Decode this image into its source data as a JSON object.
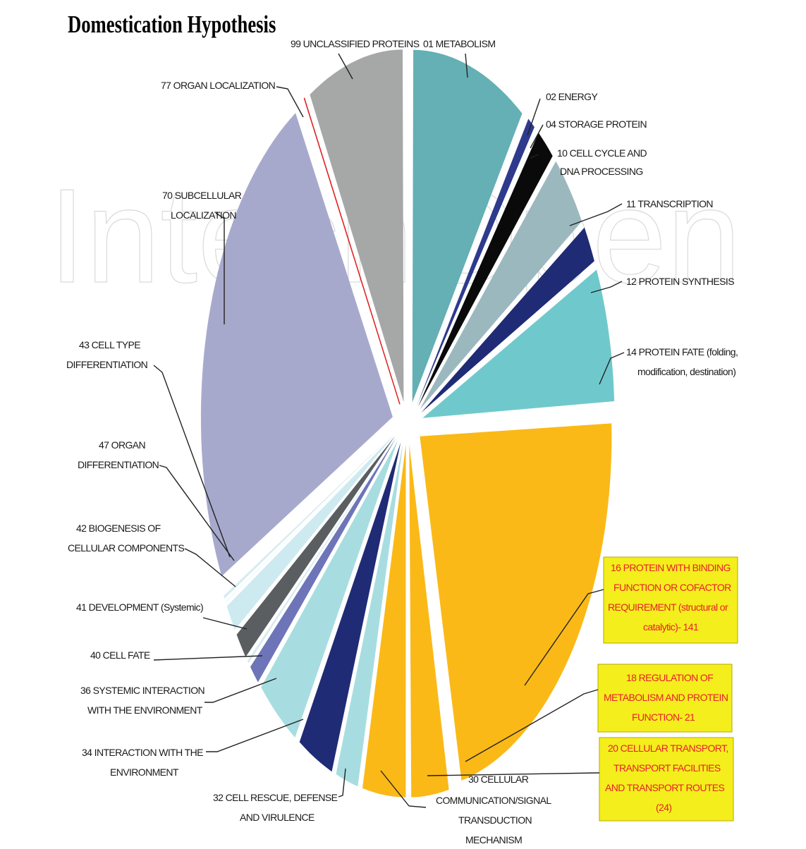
{
  "chart_data": {
    "type": "pie",
    "title": "Domestication Hypothesis",
    "watermark": "IntechOpen",
    "slices": [
      {
        "label": "01 METABOLISM",
        "value": 62,
        "color": "#64b0b4"
      },
      {
        "label": "02 ENERGY",
        "value": 5,
        "color": "#2e3a8c"
      },
      {
        "label": "04 STORAGE PROTEIN",
        "value": 1,
        "color": "#a9c3cf"
      },
      {
        "label": "10 CELL CYCLE AND DNA PROCESSING",
        "value": 11,
        "color": "#0a0a0a"
      },
      {
        "label": "11 TRANSCRIPTION",
        "value": 23,
        "color": "#9bb8bf"
      },
      {
        "label": "12 PROTEIN SYNTHESIS",
        "value": 12,
        "color": "#1f2b75"
      },
      {
        "label": "14 PROTEIN FATE (folding, modification, destination)",
        "value": 40,
        "color": "#6fc9cc"
      },
      {
        "label": "16 PROTEIN WITH BINDING FUNCTION OR COFACTOR REQUIREMENT (structural or catalytic)- 141",
        "value": 141,
        "color": "#fbb917",
        "highlight": true
      },
      {
        "label": "18 REGULATION OF METABOLISM AND PROTEIN FUNCTION- 21",
        "value": 21,
        "color": "#fbb917",
        "highlight": true
      },
      {
        "label": "20 CELLULAR TRANSPORT, TRANSPORT FACILITIES AND TRANSPORT ROUTES (24)",
        "value": 24,
        "color": "#fbb917",
        "highlight": true
      },
      {
        "label": "30 CELLULAR COMMUNICATION/SIGNAL TRANSDUCTION MECHANISM",
        "value": 13,
        "color": "#a7dde0"
      },
      {
        "label": "32 CELL RESCUE, DEFENSE AND VIRULENCE",
        "value": 20,
        "color": "#1f2b75"
      },
      {
        "label": "34 INTERACTION WITH THE ENVIRONMENT",
        "value": 24,
        "color": "#a7dde0"
      },
      {
        "label": "36 SYSTEMIC INTERACTION WITH THE ENVIRONMENT",
        "value": 7,
        "color": "#6d75b8"
      },
      {
        "label": "40 CELL FATE",
        "value": 2,
        "color": "#d8ecf0"
      },
      {
        "label": "41 DEVELOPMENT (Systemic)",
        "value": 9,
        "color": "#5a5e60"
      },
      {
        "label": "42 BIOGENESIS OF CELLULAR COMPONENTS",
        "value": 9,
        "color": "#cdeaf0"
      },
      {
        "label": "47 ORGAN DIFFERENTIATION",
        "value": 1,
        "color": "#a7dde0"
      },
      {
        "label": "43 CELL TYPE DIFFERENTIATION",
        "value": 2,
        "color": "#d8ecf0"
      },
      {
        "label": "70 SUBCELLULAR LOCALIZATION",
        "value": 153,
        "color": "#a7a9cc"
      },
      {
        "label": "77 ORGAN LOCALIZATION",
        "value": 1,
        "color": "#e02020"
      },
      {
        "label": "99 UNCLASSIFIED PROTEINS",
        "value": 52,
        "color": "#a6a7a7"
      }
    ]
  },
  "labels": {
    "title": "Domestication Hypothesis",
    "l99": "99 UNCLASSIFIED PROTEINS",
    "l01": "01 METABOLISM",
    "l77": "77 ORGAN LOCALIZATION",
    "l02": "02 ENERGY",
    "l04": "04 STORAGE  PROTEIN",
    "l10a": "10 CELL CYCLE AND",
    "l10b": "DNA PROCESSING",
    "l11": "11 TRANSCRIPTION",
    "l70a": "70 SUBCELLULAR",
    "l70b": "LOCALIZATION",
    "l12": "12 PROTEIN SYNTHESIS",
    "l14a": "14 PROTEIN FATE (folding,",
    "l14b": "modification, destination)",
    "l43a": "43 CELL TYPE",
    "l43b": "DIFFERENTIATION",
    "l47a": "47 ORGAN",
    "l47b": "DIFFERENTIATION",
    "l42a": "42 BIOGENESIS OF",
    "l42b": "CELLULAR COMPONENTS",
    "l16a": "16 PROTEIN WITH BINDING",
    "l16b": "FUNCTION OR COFACTOR",
    "l16c": "REQUIREMENT (structural or",
    "l16d": "catalytic)- 141",
    "l41": "41 DEVELOPMENT (Systemic)",
    "l40": "40 CELL FATE",
    "l18a": "18 REGULATION OF",
    "l18b": "METABOLISM AND PROTEIN",
    "l18c": "FUNCTION- 21",
    "l36a": "36 SYSTEMIC INTERACTION",
    "l36b": "WITH THE ENVIRONMENT",
    "l20a": "20 CELLULAR TRANSPORT,",
    "l20b": "TRANSPORT FACILITIES",
    "l20c": "AND TRANSPORT ROUTES",
    "l20d": "(24)",
    "l34a": "34 INTERACTION WITH THE",
    "l34b": "ENVIRONMENT",
    "l30a": "30 CELLULAR",
    "l30b": "COMMUNICATION/SIGNAL",
    "l30c": "TRANSDUCTION",
    "l30d": "MECHANISM",
    "l32a": "32 CELL RESCUE, DEFENSE",
    "l32b": "AND VIRULENCE"
  }
}
